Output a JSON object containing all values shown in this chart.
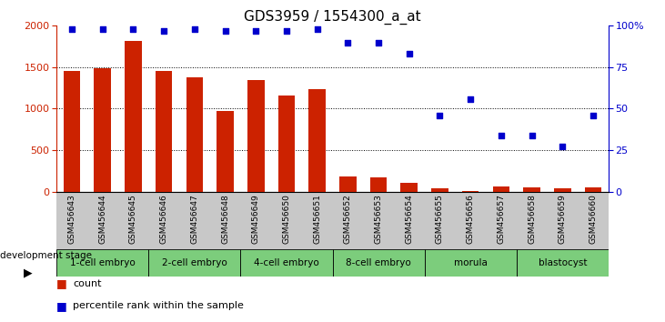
{
  "title": "GDS3959 / 1554300_a_at",
  "samples": [
    "GSM456643",
    "GSM456644",
    "GSM456645",
    "GSM456646",
    "GSM456647",
    "GSM456648",
    "GSM456649",
    "GSM456650",
    "GSM456651",
    "GSM456652",
    "GSM456653",
    "GSM456654",
    "GSM456655",
    "GSM456656",
    "GSM456657",
    "GSM456658",
    "GSM456659",
    "GSM456660"
  ],
  "counts": [
    1460,
    1490,
    1820,
    1460,
    1380,
    975,
    1350,
    1160,
    1240,
    180,
    170,
    110,
    40,
    10,
    60,
    50,
    40,
    55
  ],
  "percentiles": [
    98,
    98,
    98,
    97,
    98,
    97,
    97,
    97,
    98,
    90,
    90,
    83,
    46,
    56,
    34,
    34,
    27,
    46
  ],
  "stages": [
    {
      "label": "1-cell embryo",
      "start": 0,
      "end": 3
    },
    {
      "label": "2-cell embryo",
      "start": 3,
      "end": 6
    },
    {
      "label": "4-cell embryo",
      "start": 6,
      "end": 9
    },
    {
      "label": "8-cell embryo",
      "start": 9,
      "end": 12
    },
    {
      "label": "morula",
      "start": 12,
      "end": 15
    },
    {
      "label": "blastocyst",
      "start": 15,
      "end": 18
    }
  ],
  "stage_color": "#7CCD7C",
  "bar_color": "#CC2200",
  "dot_color": "#0000CC",
  "ylim_left": [
    0,
    2000
  ],
  "ylim_right": [
    0,
    100
  ],
  "yticks_left": [
    0,
    500,
    1000,
    1500,
    2000
  ],
  "yticks_right": [
    0,
    25,
    50,
    75,
    100
  ],
  "sample_bg_color": "#C8C8C8",
  "legend_count_color": "#CC2200",
  "legend_pct_color": "#0000CC",
  "title_fontsize": 11
}
